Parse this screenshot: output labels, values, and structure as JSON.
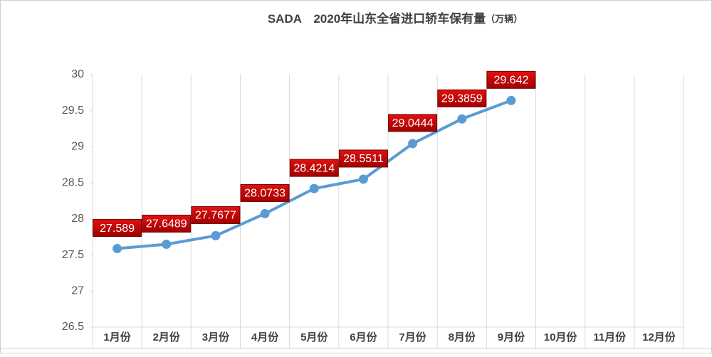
{
  "chart_data": {
    "type": "line",
    "title": "SADA　2020年山东全省进口轿车保有量",
    "title_unit": "（万辆）",
    "categories": [
      "1月份",
      "2月份",
      "3月份",
      "4月份",
      "5月份",
      "6月份",
      "7月份",
      "8月份",
      "9月份",
      "10月份",
      "11月份",
      "12月份"
    ],
    "series": [
      {
        "color": "#5b9bd5",
        "values": [
          27.589,
          27.6489,
          27.7677,
          28.0733,
          28.4214,
          28.5511,
          29.0444,
          29.3859,
          29.642,
          null,
          null,
          null
        ]
      }
    ],
    "ylim": [
      26.5,
      30
    ],
    "yticks": [
      26.5,
      27,
      27.5,
      28,
      28.5,
      29,
      29.5,
      30
    ],
    "label_color": "#c00000"
  }
}
